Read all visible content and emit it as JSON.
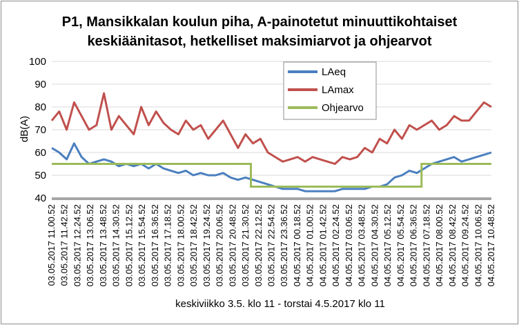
{
  "chart_data": {
    "type": "line",
    "title_lines": [
      "P1, Mansikkalan koulun piha, A-painotetut minuuttikohtaiset",
      "keskiäänitasot, hetkelliset maksimiarvot ja ohjearvot"
    ],
    "ylabel": "dB(A)",
    "xlabel": "keskiviikko 3.5. klo 11 - torstai 4.5.2017 klo 11",
    "ylim": [
      40,
      100
    ],
    "yticks": [
      40,
      50,
      60,
      70,
      80,
      90,
      100
    ],
    "grid": true,
    "legend_position": "top-center",
    "x_tick_labels": [
      "03.05.2017 11.00.52",
      "03.05.2017 11.42.52",
      "03.05.2017 12.24.52",
      "03.05.2017 13.06.52",
      "03.05.2017 13.48.52",
      "03.05.2017 14.30.52",
      "03.05.2017 15.12.52",
      "03.05.2017 15.54.52",
      "03.05.2017 16.36.52",
      "03.05.2017 17.18.52",
      "03.05.2017 18.00.52",
      "03.05.2017 18.42.52",
      "03.05.2017 19.24.52",
      "03.05.2017 20.06.52",
      "03.05.2017 20.48.52",
      "03.05.2017 21.30.52",
      "03.05.2017 22.12.52",
      "03.05.2017 22.54.52",
      "03.05.2017 23.36.52",
      "04.05.2017 00.18.52",
      "04.05.2017 01.00.52",
      "04.05.2017 01.42.52",
      "04.05.2017 02.24.52",
      "04.05.2017 03.06.52",
      "04.05.2017 03.48.52",
      "04.05.2017 04.30.52",
      "04.05.2017 05.12.52",
      "04.05.2017 05.54.52",
      "04.05.2017 06.36.52",
      "04.05.2017 07.18.52",
      "04.05.2017 08.00.52",
      "04.05.2017 08.42.52",
      "04.05.2017 09.24.52",
      "04.05.2017 10.06.52",
      "04.05.2017 10.48.52"
    ],
    "series": [
      {
        "name": "LAeq",
        "color": "#4a7fbf",
        "values": [
          62,
          60,
          57,
          64,
          58,
          55,
          56,
          57,
          56,
          54,
          55,
          54,
          55,
          53,
          55,
          53,
          52,
          51,
          52,
          50,
          51,
          50,
          50,
          51,
          49,
          48,
          49,
          48,
          47,
          46,
          45,
          44,
          44,
          44,
          43,
          43,
          43,
          43,
          43,
          44,
          44,
          44,
          44,
          45,
          45,
          46,
          49,
          50,
          52,
          51,
          53,
          55,
          56,
          57,
          58,
          56,
          57,
          58,
          59,
          60
        ]
      },
      {
        "name": "LAmax",
        "color": "#c0504d",
        "values": [
          74,
          78,
          70,
          82,
          76,
          70,
          72,
          86,
          70,
          76,
          72,
          68,
          80,
          72,
          78,
          73,
          70,
          68,
          74,
          70,
          72,
          66,
          70,
          74,
          68,
          62,
          68,
          64,
          66,
          60,
          58,
          56,
          57,
          58,
          56,
          58,
          57,
          56,
          55,
          58,
          57,
          58,
          62,
          60,
          66,
          64,
          70,
          66,
          72,
          70,
          72,
          74,
          70,
          72,
          76,
          74,
          74,
          78,
          82,
          80
        ]
      },
      {
        "name": "Ohjearvo",
        "color": "#9bbb59",
        "segments": [
          {
            "from_tick": 0,
            "to_tick": 15.4,
            "value": 55
          },
          {
            "from_tick": 15.4,
            "to_tick": 28.6,
            "value": 45
          },
          {
            "from_tick": 28.6,
            "to_tick": 34,
            "value": 55
          }
        ]
      }
    ]
  }
}
